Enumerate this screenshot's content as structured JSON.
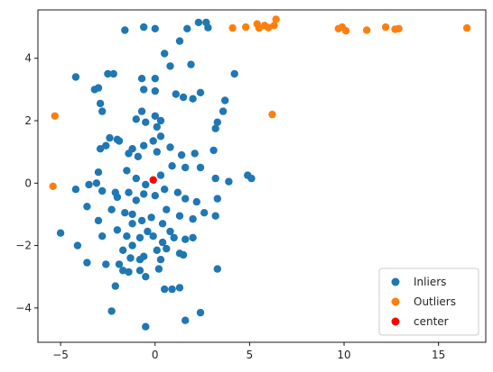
{
  "chart_data": {
    "type": "scatter",
    "title": "",
    "xlabel": "",
    "ylabel": "",
    "xlim": [
      -6.2,
      17.5
    ],
    "ylim": [
      -5.1,
      5.55
    ],
    "xticks": [
      -5,
      0,
      5,
      10,
      15
    ],
    "yticks": [
      -4,
      -2,
      0,
      2,
      4
    ],
    "grid": false,
    "legend": {
      "placement": "lower-right"
    },
    "series": [
      {
        "name": "Inliers",
        "color": "#1f77b4",
        "points": [
          [
            -1.6,
            4.9
          ],
          [
            -0.6,
            5.0
          ],
          [
            0.0,
            4.95
          ],
          [
            1.7,
            4.95
          ],
          [
            2.3,
            5.15
          ],
          [
            2.7,
            5.15
          ],
          [
            2.8,
            4.98
          ],
          [
            1.3,
            4.55
          ],
          [
            0.5,
            4.15
          ],
          [
            0.8,
            3.75
          ],
          [
            1.9,
            3.8
          ],
          [
            -4.2,
            3.4
          ],
          [
            -3.2,
            3.0
          ],
          [
            -3.0,
            3.05
          ],
          [
            -2.5,
            3.5
          ],
          [
            -2.2,
            3.5
          ],
          [
            -0.7,
            3.35
          ],
          [
            0.0,
            3.35
          ],
          [
            4.2,
            3.5
          ],
          [
            -0.6,
            3.0
          ],
          [
            0.0,
            2.95
          ],
          [
            1.1,
            2.85
          ],
          [
            1.5,
            2.75
          ],
          [
            2.4,
            2.9
          ],
          [
            2.0,
            2.7
          ],
          [
            -2.9,
            2.55
          ],
          [
            -2.8,
            2.3
          ],
          [
            -0.7,
            2.3
          ],
          [
            0.0,
            2.15
          ],
          [
            -1.0,
            2.05
          ],
          [
            0.3,
            2.0
          ],
          [
            -0.5,
            1.95
          ],
          [
            0.1,
            1.8
          ],
          [
            3.3,
            1.95
          ],
          [
            3.6,
            2.3
          ],
          [
            3.7,
            2.65
          ],
          [
            3.2,
            1.75
          ],
          [
            -2.0,
            1.4
          ],
          [
            -2.4,
            1.45
          ],
          [
            -2.6,
            1.2
          ],
          [
            -2.9,
            1.1
          ],
          [
            -1.9,
            1.35
          ],
          [
            -1.2,
            1.1
          ],
          [
            -1.4,
            0.95
          ],
          [
            -0.9,
            0.85
          ],
          [
            -0.6,
            1.2
          ],
          [
            -0.1,
            1.35
          ],
          [
            0.3,
            1.5
          ],
          [
            0.1,
            1.0
          ],
          [
            0.8,
            1.15
          ],
          [
            1.4,
            0.9
          ],
          [
            2.1,
            0.95
          ],
          [
            3.1,
            1.05
          ],
          [
            -3.0,
            0.35
          ],
          [
            -3.1,
            0.0
          ],
          [
            -1.5,
            0.4
          ],
          [
            -1.0,
            0.15
          ],
          [
            -0.5,
            -0.05
          ],
          [
            0.3,
            0.25
          ],
          [
            0.9,
            0.55
          ],
          [
            1.6,
            0.5
          ],
          [
            2.4,
            0.5
          ],
          [
            3.2,
            0.15
          ],
          [
            3.9,
            0.05
          ],
          [
            4.9,
            0.25
          ],
          [
            5.1,
            0.15
          ],
          [
            -4.2,
            -0.2
          ],
          [
            -3.5,
            -0.05
          ],
          [
            -2.8,
            -0.25
          ],
          [
            -2.1,
            -0.3
          ],
          [
            -2.0,
            -0.45
          ],
          [
            -1.4,
            -0.3
          ],
          [
            -1.0,
            -0.55
          ],
          [
            -0.6,
            -0.35
          ],
          [
            0.0,
            -0.4
          ],
          [
            0.5,
            -0.2
          ],
          [
            1.2,
            -0.3
          ],
          [
            1.6,
            -0.5
          ],
          [
            2.2,
            -0.6
          ],
          [
            2.6,
            -0.95
          ],
          [
            3.3,
            -0.5
          ],
          [
            3.2,
            -1.05
          ],
          [
            -3.6,
            -0.75
          ],
          [
            -2.3,
            -0.85
          ],
          [
            -1.6,
            -0.95
          ],
          [
            -1.2,
            -1.0
          ],
          [
            -0.7,
            -1.2
          ],
          [
            -0.2,
            -1.1
          ],
          [
            0.6,
            -0.85
          ],
          [
            1.3,
            -1.05
          ],
          [
            2.0,
            -1.15
          ],
          [
            -3.0,
            -1.2
          ],
          [
            -1.2,
            -1.3
          ],
          [
            -0.4,
            -1.55
          ],
          [
            0.4,
            -1.3
          ],
          [
            0.8,
            -1.55
          ],
          [
            -5.0,
            -1.6
          ],
          [
            -4.1,
            -2.0
          ],
          [
            -2.8,
            -1.7
          ],
          [
            -2.0,
            -1.5
          ],
          [
            -1.5,
            -1.7
          ],
          [
            -0.8,
            -1.75
          ],
          [
            -0.1,
            -1.7
          ],
          [
            0.4,
            -1.9
          ],
          [
            1.0,
            -1.75
          ],
          [
            1.6,
            -1.8
          ],
          [
            2.0,
            -1.75
          ],
          [
            -1.7,
            -2.15
          ],
          [
            -1.2,
            -2.0
          ],
          [
            -0.6,
            -2.35
          ],
          [
            0.1,
            -2.15
          ],
          [
            0.6,
            -2.1
          ],
          [
            1.3,
            -2.25
          ],
          [
            1.5,
            -2.3
          ],
          [
            -3.6,
            -2.55
          ],
          [
            -2.6,
            -2.6
          ],
          [
            -1.9,
            -2.6
          ],
          [
            -1.3,
            -2.4
          ],
          [
            -0.8,
            -2.45
          ],
          [
            0.3,
            -2.45
          ],
          [
            -1.7,
            -2.8
          ],
          [
            -1.4,
            -2.85
          ],
          [
            -0.8,
            -2.8
          ],
          [
            0.2,
            -2.75
          ],
          [
            3.3,
            -2.75
          ],
          [
            -2.1,
            -3.3
          ],
          [
            -0.5,
            -3.0
          ],
          [
            0.5,
            -3.4
          ],
          [
            0.9,
            -3.4
          ],
          [
            1.3,
            -3.35
          ],
          [
            -2.3,
            -4.1
          ],
          [
            -0.5,
            -4.6
          ],
          [
            1.6,
            -4.4
          ],
          [
            2.4,
            -4.15
          ]
        ]
      },
      {
        "name": "Outliers",
        "color": "#ff7f0e",
        "points": [
          [
            -5.3,
            2.15
          ],
          [
            -5.4,
            -0.1
          ],
          [
            6.2,
            2.2
          ],
          [
            4.1,
            4.97
          ],
          [
            4.8,
            5.0
          ],
          [
            5.4,
            5.1
          ],
          [
            5.5,
            4.97
          ],
          [
            5.8,
            5.05
          ],
          [
            6.0,
            4.98
          ],
          [
            6.3,
            5.05
          ],
          [
            6.4,
            5.25
          ],
          [
            9.7,
            4.95
          ],
          [
            9.9,
            5.0
          ],
          [
            10.1,
            4.88
          ],
          [
            11.2,
            4.9
          ],
          [
            12.2,
            5.0
          ],
          [
            12.7,
            4.93
          ],
          [
            12.9,
            4.95
          ],
          [
            16.5,
            4.97
          ]
        ]
      },
      {
        "name": "center",
        "color": "#ff0000",
        "points": [
          [
            -0.1,
            0.1
          ]
        ]
      }
    ]
  }
}
